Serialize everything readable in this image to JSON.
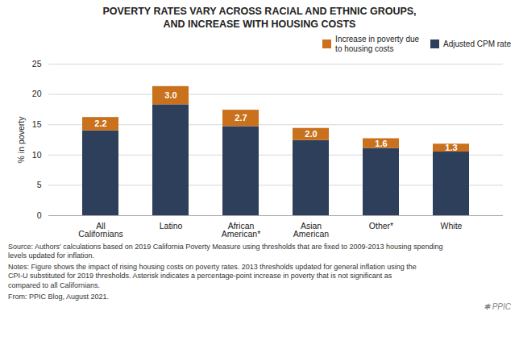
{
  "chart_data": {
    "type": "bar",
    "stacked": true,
    "title": "POVERTY RATES VARY ACROSS RACIAL AND ETHNIC GROUPS,\nAND INCREASE WITH HOUSING COSTS",
    "categories": [
      "All\nCalifornians",
      "Latino",
      "African\nAmerican*",
      "Asian\nAmerican",
      "Other*",
      "White"
    ],
    "series": [
      {
        "name": "Adjusted CPM rate",
        "color": "#2E3F5C",
        "values": [
          14.0,
          18.3,
          14.7,
          12.4,
          11.1,
          10.5
        ]
      },
      {
        "name": "Increase in poverty due\nto housing costs",
        "color": "#C9711C",
        "values": [
          2.2,
          3.0,
          2.7,
          2.0,
          1.6,
          1.3
        ],
        "data_labels": true,
        "value_labels": [
          "2.2",
          "3.0",
          "2.7",
          "2.0",
          "1.6",
          "1.3"
        ]
      }
    ],
    "ylabel": "% in poverty",
    "ylim": [
      0,
      25
    ],
    "yticks": [
      0,
      5,
      10,
      15,
      20,
      25
    ],
    "grid": true,
    "legend": "upper right",
    "annotations": [
      "Source: Authors' calculations based on 2019 California Poverty Measure using thresholds that are fixed to 2009-2013 housing spending\nlevels updated for inflation.",
      "Notes: Figure shows the impact of rising housing costs on poverty rates. 2013 thresholds updated for general inflation using the\nCPI-U substituted for 2019 thresholds. Asterisk indicates a percentage-point increase in poverty that is not significant as\ncompared to all Californians.",
      "From: PPIC Blog, August 2021.",
      "✱",
      "PPIC"
    ]
  }
}
